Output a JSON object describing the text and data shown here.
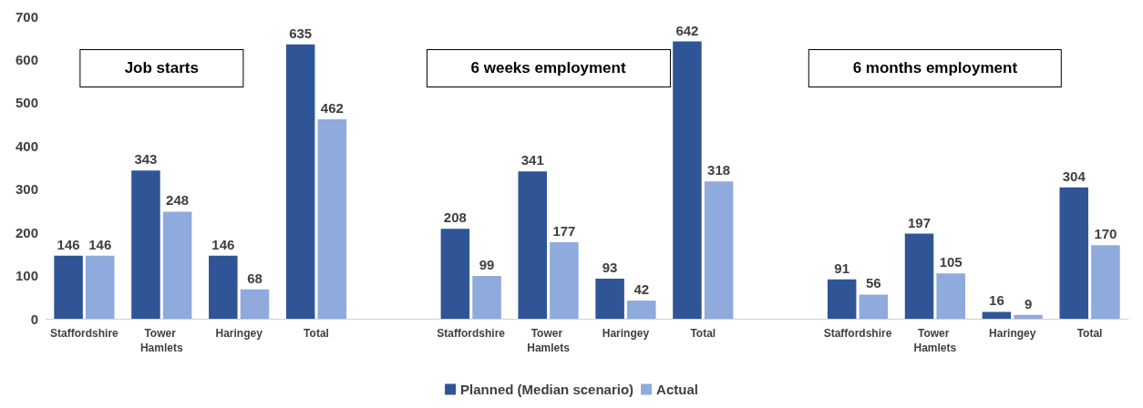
{
  "chart_data": {
    "type": "bar",
    "categories": [
      "Staffordshire",
      "Tower Hamlets",
      "Haringey",
      "Total",
      null,
      "Staffordshire",
      "Tower Hamlets",
      "Haringey",
      "Total",
      null,
      "Staffordshire",
      "Tower Hamlets",
      "Haringey",
      "Total"
    ],
    "series": [
      {
        "name": "Planned (Median scenario)",
        "color": "#2f5597",
        "values": [
          146,
          343,
          146,
          635,
          null,
          208,
          341,
          93,
          642,
          null,
          91,
          197,
          16,
          304
        ]
      },
      {
        "name": "Actual",
        "color": "#8faadc",
        "values": [
          146,
          248,
          68,
          462,
          null,
          99,
          177,
          42,
          318,
          null,
          56,
          105,
          9,
          170
        ]
      }
    ],
    "ylim": [
      0,
      700
    ],
    "yticks": [
      0,
      100,
      200,
      300,
      400,
      500,
      600,
      700
    ],
    "annotations": [
      "Job starts",
      "6 weeks employment",
      "6 months employment"
    ],
    "data_labels": true,
    "grid": false,
    "legend": "bottom"
  }
}
